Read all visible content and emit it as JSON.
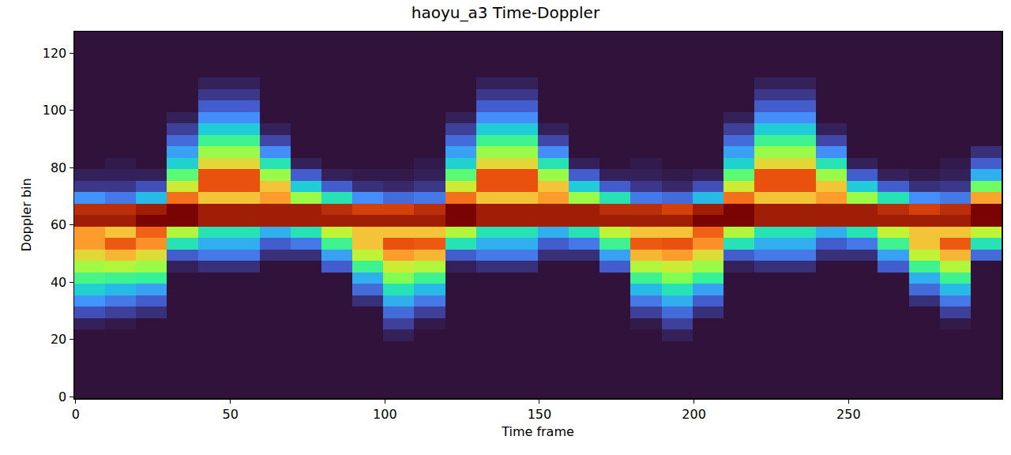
{
  "chart_data": {
    "type": "heatmap",
    "title": "haoyu_a3 Time-Doppler",
    "xlabel": "Time frame",
    "ylabel": "Doppler bin",
    "x": [
      4.5,
      14.5,
      24.5,
      34.5,
      44.5,
      54.5,
      64.5,
      74.5,
      84.5,
      94.5,
      104.5,
      114.5,
      124.5,
      134.5,
      144.5,
      154.5,
      164.5,
      174.5,
      184.5,
      194.5,
      204.5,
      214.5,
      224.5,
      234.5,
      244.5,
      254.5,
      264.5,
      274.5,
      284.5,
      294.5
    ],
    "y": [
      1.5,
      5.5,
      9.5,
      13.5,
      17.5,
      21.5,
      25.5,
      29.5,
      33.5,
      37.5,
      41.5,
      45.5,
      49.5,
      53.5,
      57.5,
      61.5,
      65.5,
      69.5,
      73.5,
      77.5,
      81.5,
      85.5,
      89.5,
      93.5,
      97.5,
      101.5,
      105.5,
      109.5,
      113.5,
      117.5,
      121.5,
      125.5
    ],
    "z": [
      [
        8,
        8,
        8,
        8,
        8,
        8,
        8,
        8,
        8,
        8,
        8,
        8,
        8,
        8,
        8,
        8,
        8,
        8,
        8,
        8,
        8,
        8,
        8,
        8,
        8,
        8,
        8,
        8,
        8,
        8
      ],
      [
        8,
        8,
        8,
        8,
        8,
        8,
        8,
        8,
        8,
        8,
        8,
        8,
        8,
        8,
        8,
        8,
        8,
        8,
        8,
        8,
        8,
        8,
        8,
        8,
        8,
        8,
        8,
        8,
        8,
        8
      ],
      [
        8,
        8,
        8,
        8,
        8,
        8,
        8,
        8,
        8,
        8,
        8,
        8,
        8,
        8,
        8,
        8,
        8,
        8,
        8,
        8,
        8,
        8,
        8,
        8,
        8,
        8,
        8,
        8,
        8,
        8
      ],
      [
        8,
        8,
        8,
        8,
        8,
        8,
        8,
        8,
        8,
        8,
        8,
        8,
        8,
        8,
        8,
        8,
        8,
        8,
        8,
        8,
        8,
        8,
        8,
        8,
        8,
        8,
        8,
        8,
        8,
        8
      ],
      [
        8,
        8,
        8,
        8,
        8,
        8,
        8,
        8,
        8,
        8,
        8,
        8,
        8,
        8,
        8,
        8,
        8,
        8,
        8,
        8,
        8,
        8,
        8,
        8,
        8,
        8,
        8,
        8,
        8,
        8
      ],
      [
        8,
        8,
        8,
        8,
        8,
        8,
        8,
        8,
        8,
        8,
        10,
        8,
        8,
        8,
        8,
        8,
        8,
        8,
        8,
        10,
        8,
        8,
        8,
        8,
        8,
        8,
        8,
        8,
        8,
        8
      ],
      [
        10,
        9,
        8,
        8,
        8,
        8,
        8,
        8,
        8,
        8,
        14,
        9,
        8,
        8,
        8,
        8,
        8,
        8,
        9,
        14,
        8,
        8,
        8,
        8,
        8,
        8,
        8,
        8,
        9,
        8
      ],
      [
        16,
        14,
        12,
        8,
        8,
        8,
        8,
        8,
        8,
        8,
        20,
        14,
        8,
        8,
        8,
        8,
        8,
        8,
        14,
        20,
        12,
        8,
        8,
        8,
        8,
        8,
        8,
        8,
        14,
        8
      ],
      [
        26,
        22,
        18,
        8,
        8,
        8,
        8,
        8,
        8,
        12,
        30,
        22,
        8,
        8,
        8,
        8,
        8,
        8,
        22,
        30,
        18,
        8,
        8,
        8,
        8,
        8,
        8,
        12,
        22,
        8
      ],
      [
        36,
        32,
        28,
        8,
        8,
        8,
        8,
        8,
        8,
        20,
        40,
        32,
        8,
        8,
        8,
        8,
        8,
        8,
        32,
        40,
        28,
        8,
        8,
        8,
        8,
        8,
        8,
        20,
        32,
        8
      ],
      [
        46,
        45,
        44,
        8,
        8,
        8,
        8,
        8,
        8,
        30,
        52,
        45,
        8,
        8,
        8,
        8,
        8,
        8,
        45,
        52,
        44,
        8,
        8,
        8,
        8,
        8,
        8,
        30,
        45,
        8
      ],
      [
        56,
        58,
        55,
        10,
        12,
        12,
        8,
        8,
        18,
        45,
        62,
        58,
        10,
        12,
        12,
        8,
        8,
        18,
        58,
        62,
        55,
        10,
        12,
        12,
        8,
        8,
        18,
        45,
        58,
        8
      ],
      [
        66,
        72,
        65,
        18,
        22,
        22,
        12,
        12,
        28,
        60,
        76,
        72,
        18,
        22,
        22,
        12,
        12,
        28,
        72,
        76,
        65,
        18,
        22,
        22,
        12,
        12,
        28,
        60,
        72,
        20
      ],
      [
        76,
        85,
        78,
        40,
        30,
        30,
        18,
        22,
        45,
        70,
        86,
        85,
        40,
        30,
        30,
        18,
        22,
        45,
        85,
        86,
        78,
        40,
        30,
        30,
        18,
        22,
        45,
        70,
        85,
        40
      ],
      [
        76,
        70,
        84,
        58,
        40,
        40,
        30,
        40,
        60,
        70,
        70,
        70,
        58,
        40,
        40,
        30,
        40,
        60,
        70,
        70,
        84,
        58,
        40,
        40,
        30,
        40,
        60,
        70,
        70,
        60
      ],
      [
        92,
        92,
        95,
        95,
        92,
        92,
        92,
        92,
        92,
        92,
        92,
        92,
        95,
        92,
        92,
        92,
        92,
        92,
        92,
        92,
        95,
        95,
        92,
        92,
        92,
        92,
        92,
        92,
        92,
        95
      ],
      [
        90,
        90,
        92,
        95,
        92,
        92,
        92,
        92,
        90,
        88,
        88,
        90,
        95,
        92,
        92,
        92,
        92,
        90,
        90,
        88,
        92,
        95,
        92,
        92,
        92,
        92,
        90,
        88,
        90,
        95
      ],
      [
        26,
        22,
        32,
        82,
        70,
        70,
        76,
        55,
        40,
        25,
        20,
        22,
        82,
        70,
        70,
        76,
        55,
        40,
        22,
        20,
        32,
        82,
        70,
        70,
        76,
        55,
        40,
        25,
        22,
        75
      ],
      [
        13,
        13,
        16,
        62,
        86,
        86,
        70,
        35,
        18,
        12,
        11,
        13,
        62,
        86,
        86,
        70,
        35,
        18,
        13,
        11,
        16,
        62,
        86,
        86,
        70,
        35,
        18,
        12,
        13,
        50
      ],
      [
        10,
        10,
        10,
        48,
        86,
        86,
        55,
        18,
        10,
        9,
        9,
        10,
        48,
        86,
        86,
        55,
        18,
        10,
        10,
        9,
        10,
        48,
        86,
        86,
        55,
        18,
        10,
        9,
        10,
        30
      ],
      [
        8,
        9,
        8,
        36,
        66,
        66,
        40,
        10,
        8,
        8,
        8,
        9,
        36,
        66,
        66,
        40,
        10,
        8,
        9,
        8,
        8,
        36,
        66,
        66,
        40,
        10,
        8,
        8,
        9,
        18
      ],
      [
        8,
        8,
        8,
        28,
        55,
        55,
        25,
        8,
        8,
        8,
        8,
        8,
        28,
        55,
        55,
        25,
        8,
        8,
        8,
        8,
        8,
        28,
        55,
        55,
        25,
        8,
        8,
        8,
        8,
        12
      ],
      [
        8,
        8,
        8,
        20,
        45,
        45,
        15,
        8,
        8,
        8,
        8,
        8,
        20,
        45,
        45,
        15,
        8,
        8,
        8,
        8,
        8,
        20,
        45,
        45,
        15,
        8,
        8,
        8,
        8,
        8
      ],
      [
        8,
        8,
        8,
        14,
        35,
        35,
        10,
        8,
        8,
        8,
        8,
        8,
        14,
        35,
        35,
        10,
        8,
        8,
        8,
        8,
        8,
        14,
        35,
        35,
        10,
        8,
        8,
        8,
        8,
        8
      ],
      [
        8,
        8,
        8,
        10,
        25,
        25,
        8,
        8,
        8,
        8,
        8,
        8,
        10,
        25,
        25,
        8,
        8,
        8,
        8,
        8,
        8,
        10,
        25,
        25,
        8,
        8,
        8,
        8,
        8,
        8
      ],
      [
        8,
        8,
        8,
        8,
        18,
        18,
        8,
        8,
        8,
        8,
        8,
        8,
        8,
        18,
        18,
        8,
        8,
        8,
        8,
        8,
        8,
        8,
        18,
        18,
        8,
        8,
        8,
        8,
        8,
        8
      ],
      [
        8,
        8,
        8,
        8,
        13,
        13,
        8,
        8,
        8,
        8,
        8,
        8,
        8,
        13,
        13,
        8,
        8,
        8,
        8,
        8,
        8,
        8,
        13,
        13,
        8,
        8,
        8,
        8,
        8,
        8
      ],
      [
        8,
        8,
        8,
        8,
        10,
        10,
        8,
        8,
        8,
        8,
        8,
        8,
        8,
        10,
        10,
        8,
        8,
        8,
        8,
        8,
        8,
        8,
        10,
        10,
        8,
        8,
        8,
        8,
        8,
        8
      ],
      [
        8,
        8,
        8,
        8,
        8,
        8,
        8,
        8,
        8,
        8,
        8,
        8,
        8,
        8,
        8,
        8,
        8,
        8,
        8,
        8,
        8,
        8,
        8,
        8,
        8,
        8,
        8,
        8,
        8,
        8
      ],
      [
        8,
        8,
        8,
        8,
        8,
        8,
        8,
        8,
        8,
        8,
        8,
        8,
        8,
        8,
        8,
        8,
        8,
        8,
        8,
        8,
        8,
        8,
        8,
        8,
        8,
        8,
        8,
        8,
        8,
        8
      ],
      [
        8,
        8,
        8,
        8,
        8,
        8,
        8,
        8,
        8,
        8,
        8,
        8,
        8,
        8,
        8,
        8,
        8,
        8,
        8,
        8,
        8,
        8,
        8,
        8,
        8,
        8,
        8,
        8,
        8,
        8
      ],
      [
        8,
        8,
        8,
        8,
        8,
        8,
        8,
        8,
        8,
        8,
        8,
        8,
        8,
        8,
        8,
        8,
        8,
        8,
        8,
        8,
        8,
        8,
        8,
        8,
        8,
        8,
        8,
        8,
        8,
        8
      ]
    ],
    "xlim": [
      -0.5,
      299.5
    ],
    "ylim": [
      -0.5,
      127.5
    ],
    "xticks": [
      0,
      50,
      100,
      150,
      200,
      250
    ],
    "yticks": [
      0,
      20,
      40,
      60,
      80,
      100,
      120
    ]
  }
}
